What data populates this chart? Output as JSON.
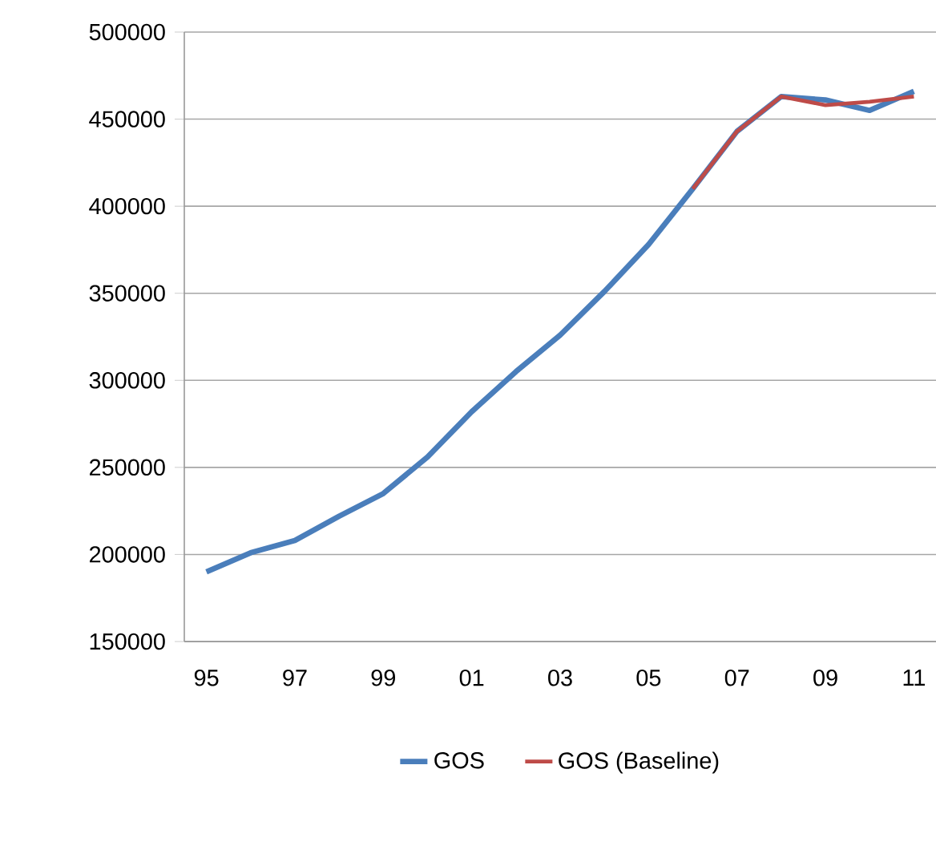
{
  "chart_data": {
    "type": "line",
    "categories": [
      "95",
      null,
      "97",
      null,
      "99",
      null,
      "01",
      null,
      "03",
      null,
      "05",
      null,
      "07",
      null,
      "09",
      null,
      "11"
    ],
    "series": [
      {
        "name": "GOS",
        "color": "#4a7ebb",
        "values": [
          190000,
          201000,
          208000,
          222000,
          235000,
          256000,
          282000,
          305000,
          326000,
          351000,
          378000,
          410000,
          443000,
          463000,
          461000,
          455000,
          466000
        ]
      },
      {
        "name": "GOS (Baseline)",
        "color": "#be4b48",
        "values": [
          null,
          null,
          null,
          null,
          null,
          null,
          null,
          null,
          null,
          null,
          null,
          410000,
          443000,
          463000,
          458000,
          460000,
          463000
        ]
      }
    ],
    "ylim": [
      150000,
      500000
    ],
    "yticks": [
      150000,
      200000,
      250000,
      300000,
      350000,
      400000,
      450000,
      500000
    ],
    "grid": "y",
    "legend": "bottom",
    "marker": "none",
    "line_style": "solid"
  }
}
